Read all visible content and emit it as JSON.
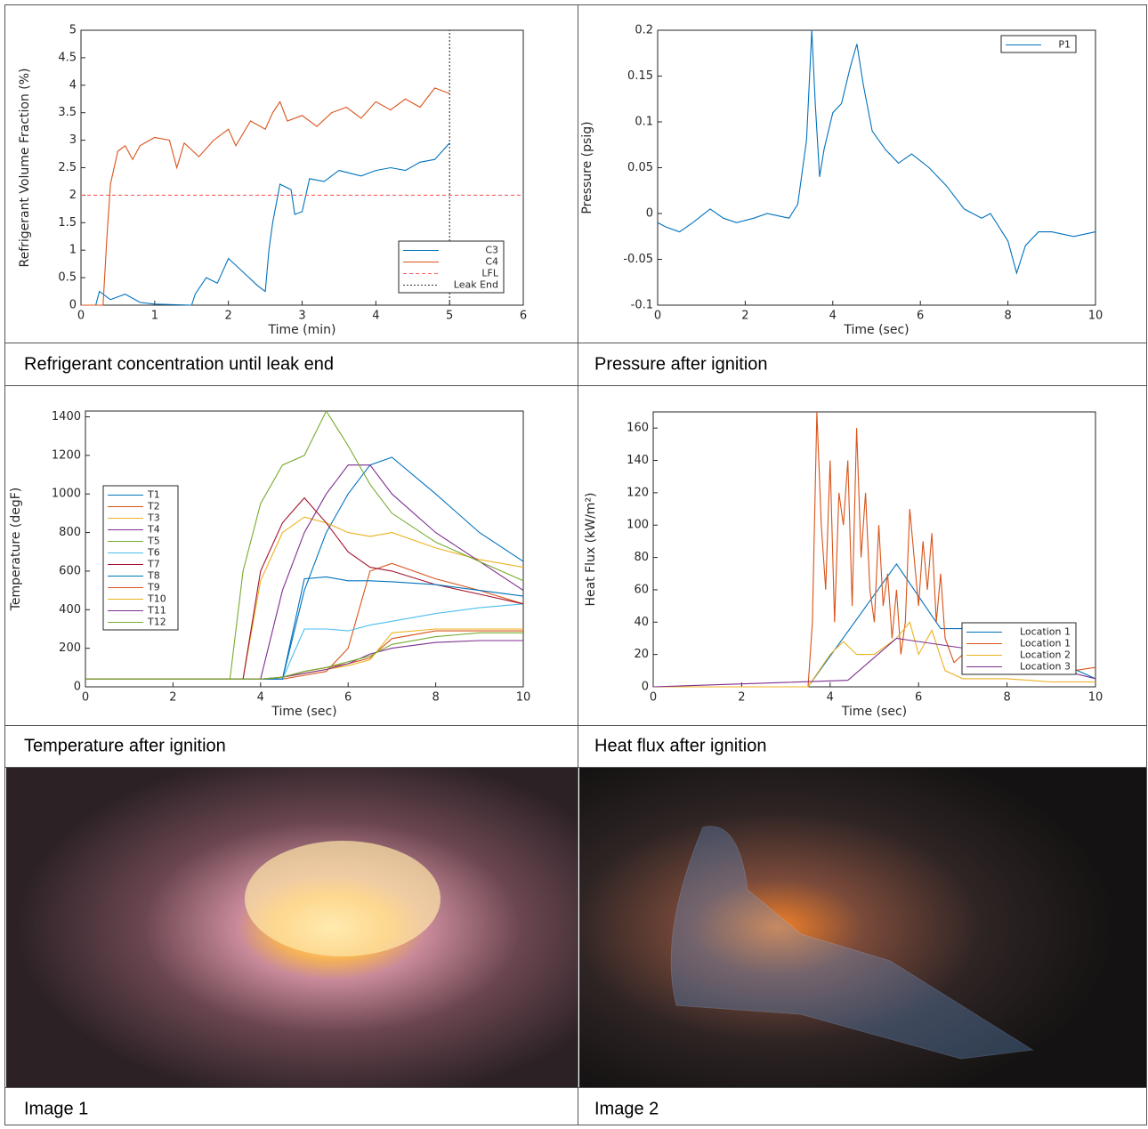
{
  "chart_data": [
    {
      "type": "line",
      "caption": "Refrigerant concentration until leak end",
      "xlabel": "Time (min)",
      "ylabel": "Refrigerant Volume Fraction (%)",
      "xlim": [
        0,
        6
      ],
      "ylim": [
        0,
        5
      ],
      "xticks": [
        0,
        1,
        2,
        3,
        4,
        5,
        6
      ],
      "yticks": [
        0,
        0.5,
        1,
        1.5,
        2,
        2.5,
        3,
        3.5,
        4,
        4.5,
        5
      ],
      "grid": false,
      "legend": "lower right",
      "series": [
        {
          "name": "C3",
          "color": "#0072bd",
          "line_style": "solid",
          "x": [
            0,
            0.2,
            0.25,
            0.4,
            0.6,
            0.8,
            1.0,
            1.5,
            1.55,
            1.7,
            1.85,
            2.0,
            2.2,
            2.4,
            2.5,
            2.55,
            2.6,
            2.7,
            2.85,
            2.9,
            3.0,
            3.1,
            3.3,
            3.5,
            3.8,
            4.0,
            4.2,
            4.4,
            4.6,
            4.8,
            5.0
          ],
          "values": [
            0,
            0,
            0.25,
            0.1,
            0.2,
            0.05,
            0.02,
            0,
            0.2,
            0.5,
            0.4,
            0.85,
            0.6,
            0.35,
            0.25,
            1.0,
            1.5,
            2.2,
            2.1,
            1.65,
            1.7,
            2.3,
            2.25,
            2.45,
            2.35,
            2.45,
            2.5,
            2.45,
            2.6,
            2.65,
            2.95
          ]
        },
        {
          "name": "C4",
          "color": "#d95319",
          "line_style": "solid",
          "x": [
            0,
            0.3,
            0.35,
            0.4,
            0.5,
            0.6,
            0.7,
            0.8,
            1.0,
            1.2,
            1.3,
            1.4,
            1.6,
            1.8,
            2.0,
            2.1,
            2.3,
            2.5,
            2.6,
            2.7,
            2.8,
            3.0,
            3.2,
            3.4,
            3.6,
            3.8,
            4.0,
            4.2,
            4.4,
            4.6,
            4.8,
            5.0
          ],
          "values": [
            0,
            0,
            1.2,
            2.2,
            2.8,
            2.9,
            2.65,
            2.9,
            3.05,
            3.0,
            2.5,
            2.95,
            2.7,
            3.0,
            3.2,
            2.9,
            3.35,
            3.2,
            3.5,
            3.7,
            3.35,
            3.45,
            3.25,
            3.5,
            3.6,
            3.4,
            3.7,
            3.55,
            3.75,
            3.6,
            3.95,
            3.85
          ]
        },
        {
          "name": "LFL",
          "color": "#ff6060",
          "line_style": "dashed",
          "x": [
            0,
            6
          ],
          "values": [
            2,
            2
          ]
        },
        {
          "name": "Leak End",
          "color": "#333333",
          "line_style": "dotted",
          "x": [
            5,
            5
          ],
          "values": [
            0,
            5
          ]
        }
      ]
    },
    {
      "type": "line",
      "caption": "Pressure after ignition",
      "xlabel": "Time (sec)",
      "ylabel": "Pressure (psig)",
      "xlim": [
        0,
        10
      ],
      "ylim": [
        -0.1,
        0.2
      ],
      "xticks": [
        0,
        2,
        4,
        6,
        8,
        10
      ],
      "yticks": [
        -0.1,
        -0.05,
        0,
        0.05,
        0.1,
        0.15,
        0.2
      ],
      "grid": false,
      "legend": "upper right",
      "series": [
        {
          "name": "P1",
          "color": "#0072bd",
          "line_style": "solid",
          "x": [
            0,
            0.2,
            0.5,
            0.8,
            1.2,
            1.5,
            1.8,
            2.2,
            2.5,
            3.0,
            3.2,
            3.4,
            3.52,
            3.6,
            3.7,
            3.8,
            4.0,
            4.2,
            4.4,
            4.55,
            4.7,
            4.9,
            5.2,
            5.5,
            5.8,
            6.2,
            6.6,
            7.0,
            7.4,
            7.6,
            7.8,
            8.0,
            8.2,
            8.4,
            8.7,
            9.0,
            9.5,
            10
          ],
          "values": [
            -0.01,
            -0.015,
            -0.02,
            -0.01,
            0.005,
            -0.005,
            -0.01,
            -0.005,
            0,
            -0.005,
            0.01,
            0.08,
            0.2,
            0.12,
            0.04,
            0.07,
            0.11,
            0.12,
            0.16,
            0.185,
            0.14,
            0.09,
            0.07,
            0.055,
            0.065,
            0.05,
            0.03,
            0.005,
            -0.005,
            0,
            -0.015,
            -0.03,
            -0.065,
            -0.035,
            -0.02,
            -0.02,
            -0.025,
            -0.02
          ]
        }
      ]
    },
    {
      "type": "line",
      "caption": "Temperature after ignition",
      "xlabel": "Time (sec)",
      "ylabel": "Temperature (degF)",
      "xlim": [
        0,
        10
      ],
      "ylim": [
        0,
        1430
      ],
      "xticks": [
        0,
        2,
        4,
        6,
        8,
        10
      ],
      "yticks": [
        0,
        200,
        400,
        600,
        800,
        1000,
        1200,
        1400
      ],
      "grid": false,
      "legend": "center left",
      "series": [
        {
          "name": "T1",
          "color": "#0072bd",
          "line_style": "solid",
          "x": [
            0,
            3.3,
            3.6,
            4,
            4.5,
            5,
            5.5,
            6,
            6.5,
            7,
            8,
            9,
            10
          ],
          "values": [
            40,
            40,
            40,
            40,
            40,
            500,
            800,
            1000,
            1150,
            1190,
            1000,
            800,
            650
          ]
        },
        {
          "name": "T2",
          "color": "#d95319",
          "line_style": "solid",
          "x": [
            0,
            3.3,
            3.6,
            4,
            4.5,
            5,
            5.5,
            6,
            6.5,
            7,
            8,
            9,
            10
          ],
          "values": [
            40,
            40,
            40,
            40,
            40,
            60,
            80,
            200,
            600,
            640,
            560,
            500,
            430
          ]
        },
        {
          "name": "T3",
          "color": "#edb120",
          "line_style": "solid",
          "x": [
            0,
            3.3,
            3.6,
            4,
            4.5,
            5,
            5.5,
            6,
            6.5,
            7,
            8,
            9,
            10
          ],
          "values": [
            40,
            40,
            40,
            550,
            800,
            880,
            850,
            800,
            780,
            800,
            720,
            660,
            620
          ]
        },
        {
          "name": "T4",
          "color": "#7e2f8e",
          "line_style": "solid",
          "x": [
            0,
            3.3,
            3.6,
            4,
            4.5,
            5,
            5.5,
            6,
            6.5,
            7,
            8,
            9,
            10
          ],
          "values": [
            40,
            40,
            40,
            40,
            500,
            800,
            1000,
            1150,
            1150,
            1000,
            800,
            650,
            500
          ]
        },
        {
          "name": "T5",
          "color": "#77ac30",
          "line_style": "solid",
          "x": [
            0,
            3.3,
            3.6,
            4,
            4.5,
            5,
            5.5,
            6,
            6.5,
            7,
            8,
            9,
            10
          ],
          "values": [
            40,
            40,
            600,
            950,
            1150,
            1200,
            1430,
            1250,
            1050,
            900,
            750,
            650,
            550
          ]
        },
        {
          "name": "T6",
          "color": "#4dbeee",
          "line_style": "solid",
          "x": [
            0,
            3.3,
            3.6,
            4,
            4.5,
            5,
            5.5,
            6,
            6.5,
            7,
            8,
            9,
            10
          ],
          "values": [
            40,
            40,
            40,
            40,
            40,
            300,
            300,
            290,
            320,
            340,
            380,
            410,
            430
          ]
        },
        {
          "name": "T7",
          "color": "#a2142f",
          "line_style": "solid",
          "x": [
            0,
            3.3,
            3.6,
            4,
            4.5,
            5,
            5.5,
            6,
            6.5,
            7,
            8,
            9,
            10
          ],
          "values": [
            40,
            40,
            40,
            600,
            850,
            980,
            850,
            700,
            620,
            600,
            530,
            480,
            430
          ]
        },
        {
          "name": "T8",
          "color": "#0072bd",
          "line_style": "solid",
          "x": [
            0,
            3.3,
            3.6,
            4,
            4.5,
            5,
            5.5,
            6,
            6.5,
            7,
            8,
            9,
            10
          ],
          "values": [
            40,
            40,
            40,
            40,
            40,
            560,
            570,
            550,
            550,
            545,
            530,
            500,
            470
          ]
        },
        {
          "name": "T9",
          "color": "#d95319",
          "line_style": "solid",
          "x": [
            0,
            3.3,
            3.6,
            4,
            4.5,
            5,
            5.5,
            6,
            6.5,
            7,
            8,
            9,
            10
          ],
          "values": [
            40,
            40,
            40,
            40,
            50,
            80,
            100,
            120,
            150,
            250,
            290,
            290,
            290
          ]
        },
        {
          "name": "T10",
          "color": "#edb120",
          "line_style": "solid",
          "x": [
            0,
            3.3,
            3.6,
            4,
            4.5,
            5,
            5.5,
            6,
            6.5,
            7,
            8,
            9,
            10
          ],
          "values": [
            40,
            40,
            40,
            40,
            50,
            70,
            90,
            110,
            140,
            280,
            300,
            300,
            300
          ]
        },
        {
          "name": "T11",
          "color": "#7e2f8e",
          "line_style": "solid",
          "x": [
            0,
            3.3,
            3.6,
            4,
            4.5,
            5,
            5.5,
            6,
            6.5,
            7,
            8,
            9,
            10
          ],
          "values": [
            40,
            40,
            40,
            40,
            50,
            70,
            90,
            120,
            170,
            200,
            230,
            240,
            240
          ]
        },
        {
          "name": "T12",
          "color": "#77ac30",
          "line_style": "solid",
          "x": [
            0,
            3.3,
            3.6,
            4,
            4.5,
            5,
            5.5,
            6,
            6.5,
            7,
            8,
            9,
            10
          ],
          "values": [
            40,
            40,
            40,
            40,
            50,
            80,
            100,
            130,
            160,
            220,
            260,
            280,
            280
          ]
        }
      ]
    },
    {
      "type": "line",
      "caption": "Heat flux after ignition",
      "xlabel": "Time (sec)",
      "ylabel": "Heat Flux (kW/m²)",
      "xlim": [
        0,
        10
      ],
      "ylim": [
        0,
        170
      ],
      "xticks": [
        0,
        2,
        4,
        6,
        8,
        10
      ],
      "yticks": [
        0,
        20,
        40,
        60,
        80,
        100,
        120,
        140,
        160
      ],
      "grid": false,
      "legend": "lower right",
      "series": [
        {
          "name": "Location 1",
          "color": "#0072bd",
          "line_style": "solid",
          "x": [
            0,
            3.5,
            5.5,
            6.5,
            7.5,
            10
          ],
          "values": [
            0,
            0,
            76,
            36,
            36,
            5
          ]
        },
        {
          "name": "Location 1",
          "color": "#d95319",
          "line_style": "solid",
          "x": [
            0,
            3.5,
            3.6,
            3.7,
            3.8,
            3.9,
            4.0,
            4.1,
            4.2,
            4.3,
            4.4,
            4.5,
            4.6,
            4.7,
            4.8,
            4.9,
            5.0,
            5.1,
            5.2,
            5.3,
            5.4,
            5.5,
            5.6,
            5.7,
            5.8,
            5.9,
            6.0,
            6.1,
            6.2,
            6.3,
            6.4,
            6.5,
            6.6,
            6.8,
            7.0,
            7.5,
            8,
            9,
            10
          ],
          "values": [
            0,
            0,
            40,
            170,
            100,
            60,
            140,
            40,
            120,
            100,
            140,
            50,
            160,
            80,
            120,
            60,
            40,
            100,
            50,
            70,
            30,
            60,
            20,
            40,
            110,
            80,
            50,
            90,
            60,
            95,
            40,
            70,
            30,
            15,
            20,
            15,
            10,
            8,
            12
          ]
        },
        {
          "name": "Location 2",
          "color": "#edb120",
          "line_style": "solid",
          "x": [
            0,
            3.5,
            4.0,
            4.3,
            4.6,
            5,
            5.5,
            5.8,
            6.0,
            6.3,
            6.6,
            7,
            8,
            9,
            10
          ],
          "values": [
            0,
            0,
            20,
            28,
            20,
            20,
            30,
            40,
            20,
            35,
            10,
            5,
            5,
            3,
            3
          ]
        },
        {
          "name": "Location 3",
          "color": "#7e2f8e",
          "line_style": "solid",
          "x": [
            0,
            4.4,
            5.5,
            7.5,
            10
          ],
          "values": [
            0,
            4,
            30,
            22,
            5
          ]
        }
      ]
    }
  ],
  "images": [
    {
      "caption": "Image 1"
    },
    {
      "caption": "Image 2"
    }
  ]
}
